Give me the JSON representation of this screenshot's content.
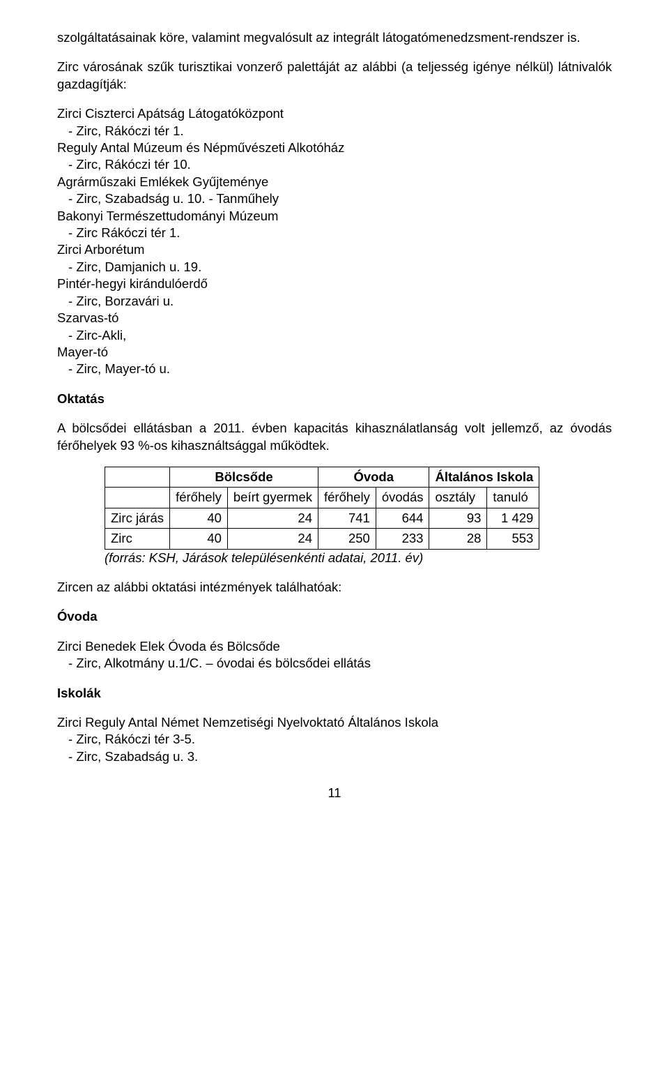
{
  "p1": "szolgáltatásainak köre, valamint megvalósult az integrált látogatómenedzsment-rendszer is.",
  "p2": "Zirc városának szűk turisztikai vonzerő palettáját az alábbi (a teljesség igénye nélkül) látnivalók gazdagítják:",
  "attractions": [
    {
      "title": "Zirci Ciszterci Apátság Látogatóközpont",
      "addr": "Zirc, Rákóczi tér 1."
    },
    {
      "title": "Reguly Antal Múzeum és Népművészeti Alkotóház",
      "addr": "Zirc, Rákóczi tér 10."
    },
    {
      "title": "Agrárműszaki Emlékek Gyűjteménye",
      "addr": "Zirc, Szabadság u. 10. - Tanműhely"
    },
    {
      "title": "Bakonyi Természettudományi Múzeum",
      "addr": "Zirc Rákóczi tér 1."
    },
    {
      "title": "Zirci Arborétum",
      "addr": "Zirc, Damjanich u. 19."
    },
    {
      "title": "Pintér-hegyi kirándulóerdő",
      "addr": "Zirc, Borzavári u."
    },
    {
      "title": "Szarvas-tó",
      "addr": "Zirc-Akli,"
    },
    {
      "title": "Mayer-tó",
      "addr": "Zirc, Mayer-tó u."
    }
  ],
  "h_oktatas": "Oktatás",
  "p_oktatas": "A bölcsődei ellátásban a 2011. évben kapacitás kihasználatlanság volt jellemző, az óvodás férőhelyek 93 %-os kihasználtsággal működtek.",
  "table": {
    "header1": [
      "",
      "Bölcsőde",
      "Óvoda",
      "Általános Iskola"
    ],
    "header2": [
      "",
      "férőhely",
      "beírt gyermek",
      "férőhely",
      "óvodás",
      "osztály",
      "tanuló"
    ],
    "rows": [
      {
        "label": "Zirc járás",
        "cells": [
          "40",
          "24",
          "741",
          "644",
          "93",
          "1 429"
        ]
      },
      {
        "label": "Zirc",
        "cells": [
          "40",
          "24",
          "250",
          "233",
          "28",
          "553"
        ]
      }
    ]
  },
  "source": "(forrás: KSH, Járások településenkénti adatai, 2011. év)",
  "p_zircen": "Zircen az alábbi oktatási intézmények találhatóak:",
  "h_ovoda": "Óvoda",
  "ovoda_title": "Zirci Benedek Elek Óvoda és Bölcsőde",
  "ovoda_addr": "Zirc, Alkotmány u.1/C. – óvodai és bölcsődei ellátás",
  "h_iskolak": "Iskolák",
  "iskola_title": "Zirci Reguly Antal Német Nemzetiségi Nyelvoktató Általános Iskola",
  "iskola_addr1": "Zirc, Rákóczi tér 3-5.",
  "iskola_addr2": "Zirc, Szabadság u. 3.",
  "page_number": "11"
}
